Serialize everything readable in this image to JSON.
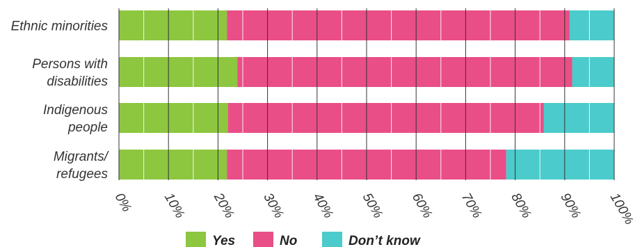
{
  "chart_data": {
    "type": "bar",
    "orientation": "horizontal",
    "stacked": true,
    "categories": [
      [
        "Ethnic minorities"
      ],
      [
        "Persons with",
        "disabilities"
      ],
      [
        "Indigenous",
        "people"
      ],
      [
        "Migrants/",
        "refugees"
      ]
    ],
    "series": [
      {
        "name": "Yes",
        "color": "#8dc63f",
        "values": [
          21.8,
          23.9,
          22.0,
          21.8
        ]
      },
      {
        "name": "No",
        "color": "#e94e86",
        "values": [
          69.2,
          67.6,
          63.8,
          56.4
        ]
      },
      {
        "name": "Don’t know",
        "color": "#4bcbcb",
        "values": [
          9.0,
          8.5,
          14.2,
          21.8
        ]
      }
    ],
    "xlim": [
      0,
      100
    ],
    "xticks": [
      "0%",
      "10%",
      "20%",
      "30%",
      "40%",
      "50%",
      "60%",
      "70%",
      "80%",
      "90%",
      "100%"
    ],
    "grid": true,
    "legend": "bottom"
  }
}
